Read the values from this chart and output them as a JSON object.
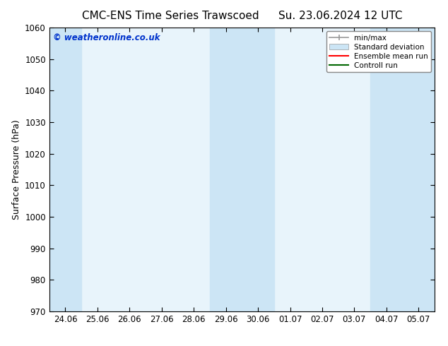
{
  "title": "CMC-ENS Time Series Trawscoed",
  "title2": "Su. 23.06.2024 12 UTC",
  "ylabel": "Surface Pressure (hPa)",
  "bg_color": "#ffffff",
  "plot_bg_color": "#e8f4fb",
  "shaded_color": "#cce5f5",
  "ylim": [
    970,
    1060
  ],
  "yticks": [
    970,
    980,
    990,
    1000,
    1010,
    1020,
    1030,
    1040,
    1050,
    1060
  ],
  "xtick_labels": [
    "24.06",
    "25.06",
    "26.06",
    "27.06",
    "28.06",
    "29.06",
    "30.06",
    "01.07",
    "02.07",
    "03.07",
    "04.07",
    "05.07"
  ],
  "watermark": "© weatheronline.co.uk",
  "watermark_color": "#0033cc",
  "shaded_band_indices": [
    0,
    5,
    6,
    10,
    11
  ],
  "legend_items": [
    {
      "label": "min/max",
      "color": "#999999",
      "lw": 1.2,
      "type": "hline_caps"
    },
    {
      "label": "Standard deviation",
      "color": "#cce5f5",
      "lw": 8,
      "type": "thick"
    },
    {
      "label": "Ensemble mean run",
      "color": "#ff0000",
      "lw": 1.5,
      "type": "line"
    },
    {
      "label": "Controll run",
      "color": "#006600",
      "lw": 1.5,
      "type": "line"
    }
  ],
  "title_fontsize": 11,
  "tick_fontsize": 8.5,
  "ylabel_fontsize": 9
}
